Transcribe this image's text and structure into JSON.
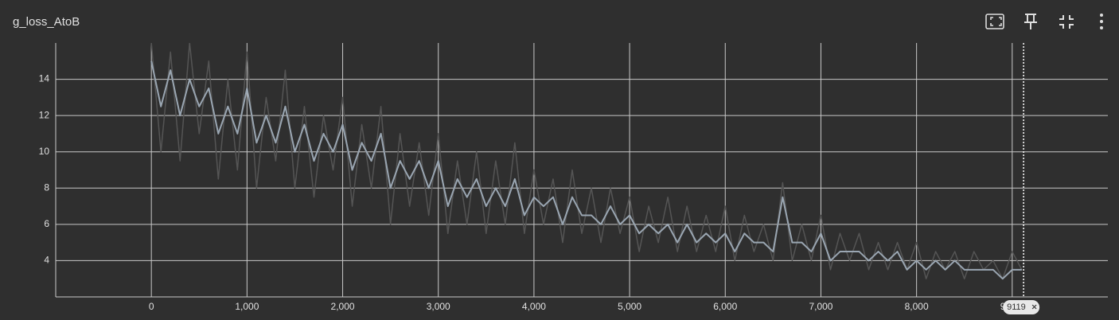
{
  "chart_data": {
    "type": "line",
    "title": "g_loss_AtoB",
    "x": [
      0,
      100,
      200,
      300,
      400,
      500,
      600,
      700,
      800,
      900,
      1000,
      1100,
      1200,
      1300,
      1400,
      1500,
      1600,
      1700,
      1800,
      1900,
      2000,
      2100,
      2200,
      2300,
      2400,
      2500,
      2600,
      2700,
      2800,
      2900,
      3000,
      3100,
      3200,
      3300,
      3400,
      3500,
      3600,
      3700,
      3800,
      3900,
      4000,
      4100,
      4200,
      4300,
      4400,
      4500,
      4600,
      4700,
      4800,
      4900,
      5000,
      5100,
      5200,
      5300,
      5400,
      5500,
      5600,
      5700,
      5800,
      5900,
      6000,
      6100,
      6200,
      6300,
      6400,
      6500,
      6600,
      6700,
      6800,
      6900,
      7000,
      7100,
      7200,
      7300,
      7400,
      7500,
      7600,
      7700,
      7800,
      7900,
      8000,
      8100,
      8200,
      8300,
      8400,
      8500,
      8600,
      8700,
      8800,
      8900,
      9000,
      9100
    ],
    "series": [
      {
        "color": "#555555",
        "values": [
          16,
          10,
          15.5,
          9.5,
          16,
          11,
          15,
          8.5,
          14,
          9,
          15.5,
          8,
          13,
          9.5,
          14.5,
          8,
          12.5,
          7.5,
          12,
          9,
          13,
          7,
          11.5,
          8,
          12.5,
          6,
          11,
          7,
          10.5,
          6.5,
          11,
          5.5,
          9.5,
          6,
          10,
          5.5,
          9.5,
          6,
          10.5,
          5.5,
          9,
          6,
          8.5,
          5,
          9,
          5.5,
          8,
          5,
          8,
          5.5,
          7.5,
          4.5,
          7,
          5,
          7.5,
          4.5,
          7,
          4.5,
          6.5,
          4.5,
          7,
          4,
          6.5,
          4.5,
          6,
          4,
          8.3,
          4,
          6,
          4,
          6.5,
          3.5,
          5.5,
          4,
          5.5,
          3.5,
          5,
          3.5,
          5,
          3.5,
          5,
          3,
          4.5,
          3.5,
          4.5,
          3,
          4.5,
          3.5,
          4,
          3,
          4.5,
          3.5
        ]
      },
      {
        "color": "#9aa6b2",
        "values": [
          15,
          12.5,
          14.5,
          12,
          14,
          12.5,
          13.5,
          11,
          12.5,
          11,
          13.5,
          10.5,
          12,
          10.5,
          12.5,
          10,
          11.5,
          9.5,
          11,
          10,
          11.5,
          9,
          10.5,
          9.5,
          11,
          8,
          9.5,
          8.5,
          9.5,
          8,
          9.5,
          7,
          8.5,
          7.5,
          8.5,
          7,
          8,
          7,
          8.5,
          6.5,
          7.5,
          7,
          7.5,
          6,
          7.5,
          6.5,
          6.5,
          6,
          7,
          6,
          6.5,
          5.5,
          6,
          5.5,
          6,
          5,
          6,
          5,
          5.5,
          5,
          5.5,
          4.5,
          5.5,
          5,
          5,
          4.5,
          7.5,
          5,
          5,
          4.5,
          5.5,
          4,
          4.5,
          4.5,
          4.5,
          4,
          4.5,
          4,
          4.5,
          3.5,
          4,
          3.5,
          4,
          3.5,
          4,
          3.5,
          3.5,
          3.5,
          3.5,
          3,
          3.5,
          3.5
        ]
      }
    ],
    "xlim": [
      -1000,
      10000
    ],
    "xticks": [
      {
        "value": 0,
        "label": "0"
      },
      {
        "value": 1000,
        "label": "1,000"
      },
      {
        "value": 2000,
        "label": "2,000"
      },
      {
        "value": 3000,
        "label": "3,000"
      },
      {
        "value": 4000,
        "label": "4,000"
      },
      {
        "value": 5000,
        "label": "5,000"
      },
      {
        "value": 6000,
        "label": "6,000"
      },
      {
        "value": 7000,
        "label": "7,000"
      },
      {
        "value": 8000,
        "label": "8,000"
      },
      {
        "value": 9000,
        "label": "9,000"
      }
    ],
    "ylim": [
      2,
      16
    ],
    "yticks": [
      4,
      6,
      8,
      10,
      12,
      14
    ],
    "grid": true,
    "hover_x": 9119
  }
}
